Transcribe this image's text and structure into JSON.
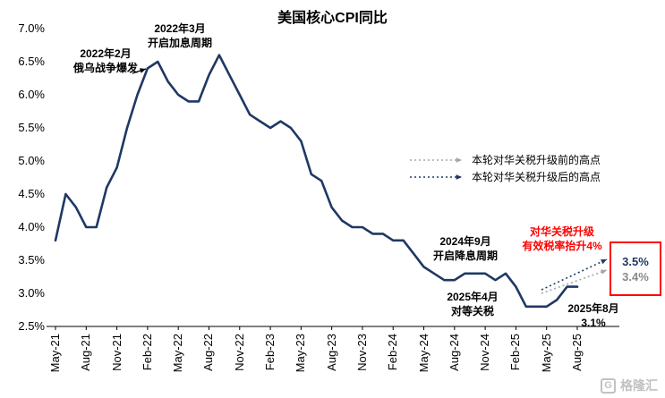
{
  "title": "美国核心CPI同比",
  "colors": {
    "line": "#1F3864",
    "navy": "#1F3864",
    "red": "#FF0000",
    "gray": "#A6A6A6",
    "axis": "#000000"
  },
  "legend": {
    "pre": {
      "label": "本轮对华关税升级前的高点"
    },
    "post": {
      "label": "本轮对华关税升级后的高点"
    }
  },
  "annotations": {
    "war": [
      "2022年2月",
      "俄乌战争爆发"
    ],
    "rate_hike": [
      "2022年3月",
      "开启加息周期"
    ],
    "rate_cut": [
      "2024年9月",
      "开启降息周期"
    ],
    "reciprocal_tariff": [
      "2025年4月",
      "对等关税"
    ],
    "latest": [
      "2025年8月",
      "3.1%"
    ],
    "escalation": [
      "对华关税升级",
      "有效税率抬升4%"
    ]
  },
  "projection": {
    "post_high": "3.5%",
    "pre_high": "3.4%"
  },
  "watermark": {
    "logo_letter": "G",
    "text": "格隆汇"
  },
  "chart_data": {
    "type": "line",
    "title": "美国核心CPI同比",
    "ylim": [
      2.5,
      7.0
    ],
    "ytick_step": 0.5,
    "yticks": [
      "7.0%",
      "6.5%",
      "6.0%",
      "5.5%",
      "5.0%",
      "4.5%",
      "4.0%",
      "3.5%",
      "3.0%",
      "2.5%"
    ],
    "x_tick_labels": [
      "May-21",
      "Aug-21",
      "Nov-21",
      "Feb-22",
      "May-22",
      "Aug-22",
      "Nov-22",
      "Feb-23",
      "May-23",
      "Aug-23",
      "Nov-23",
      "Feb-24",
      "May-24",
      "Aug-24",
      "Nov-24",
      "Feb-25",
      "May-25",
      "Aug-25"
    ],
    "grid": false,
    "legend_position": "right-middle",
    "series": [
      {
        "name": "美国核心CPI同比",
        "x_start": "2021-05",
        "freq": "monthly",
        "values": [
          3.8,
          4.5,
          4.3,
          4.0,
          4.0,
          4.6,
          4.9,
          5.5,
          6.0,
          6.4,
          6.5,
          6.2,
          6.0,
          5.9,
          5.9,
          6.3,
          6.6,
          6.3,
          6.0,
          5.7,
          5.6,
          5.5,
          5.6,
          5.5,
          5.3,
          4.8,
          4.7,
          4.3,
          4.1,
          4.0,
          4.0,
          3.9,
          3.9,
          3.8,
          3.8,
          3.6,
          3.4,
          3.3,
          3.2,
          3.2,
          3.3,
          3.3,
          3.3,
          3.2,
          3.3,
          3.1,
          2.8,
          2.8,
          2.8,
          2.9,
          3.1,
          3.1
        ]
      }
    ],
    "projection_points": {
      "pre_high": 3.4,
      "post_high": 3.5,
      "latest": 3.1
    }
  }
}
